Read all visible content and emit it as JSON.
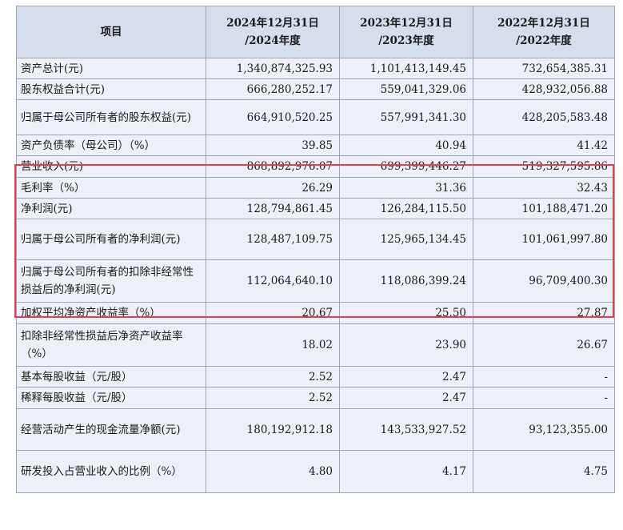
{
  "table": {
    "headers": [
      {
        "line1": "项目",
        "line2": ""
      },
      {
        "line1": "2024年12月31日",
        "line2": "/2024年度"
      },
      {
        "line1": "2023年12月31日",
        "line2": "/2023年度"
      },
      {
        "line1": "2022年12月31日",
        "line2": "/2022年度"
      }
    ],
    "rows": [
      {
        "label": "资产总计(元)",
        "v2024": "1,340,874,325.93",
        "v2023": "1,101,413,149.45",
        "v2022": "732,654,385.31"
      },
      {
        "label": "股东权益合计(元)",
        "v2024": "666,280,252.17",
        "v2023": "559,041,329.06",
        "v2022": "428,932,056.88"
      },
      {
        "label": "归属于母公司所有者的股东权益(元)",
        "v2024": "664,910,520.25",
        "v2023": "557,991,341.30",
        "v2022": "428,205,583.48"
      },
      {
        "label": "资产负债率（母公司）（%）",
        "v2024": "39.85",
        "v2023": "40.94",
        "v2022": "41.42"
      },
      {
        "label": "营业收入(元)",
        "v2024": "868,892,976.07",
        "v2023": "699,399,446.27",
        "v2022": "519,327,595.86"
      },
      {
        "label": "毛利率（%）",
        "v2024": "26.29",
        "v2023": "31.36",
        "v2022": "32.43"
      },
      {
        "label": "净利润(元)",
        "v2024": "128,794,861.45",
        "v2023": "126,284,115.50",
        "v2022": "101,188,471.20"
      },
      {
        "label": "归属于母公司所有者的净利润(元)",
        "v2024": "128,487,109.75",
        "v2023": "125,965,134.45",
        "v2022": "101,061,997.80"
      },
      {
        "label": "归属于母公司所有者的扣除非经常性损益后的净利润(元)",
        "v2024": "112,064,640.10",
        "v2023": "118,086,399.24",
        "v2022": "96,709,400.30"
      },
      {
        "label": "加权平均净资产收益率（%）",
        "v2024": "20.67",
        "v2023": "25.50",
        "v2022": "27.87"
      },
      {
        "label": "扣除非经常性损益后净资产收益率（%）",
        "v2024": "18.02",
        "v2023": "23.90",
        "v2022": "26.67"
      },
      {
        "label": "基本每股收益（元/股）",
        "v2024": "2.52",
        "v2023": "2.47",
        "v2022": "-"
      },
      {
        "label": "稀释每股收益（元/股）",
        "v2024": "2.52",
        "v2023": "2.47",
        "v2022": "-"
      },
      {
        "label": "经营活动产生的现金流量净额(元)",
        "v2024": "180,192,912.18",
        "v2023": "143,533,927.52",
        "v2022": "93,123,355.00"
      },
      {
        "label": "研发投入占营业收入的比例（%）",
        "v2024": "4.80",
        "v2023": "4.17",
        "v2022": "4.75"
      }
    ]
  },
  "highlight_color": "#e0404f"
}
